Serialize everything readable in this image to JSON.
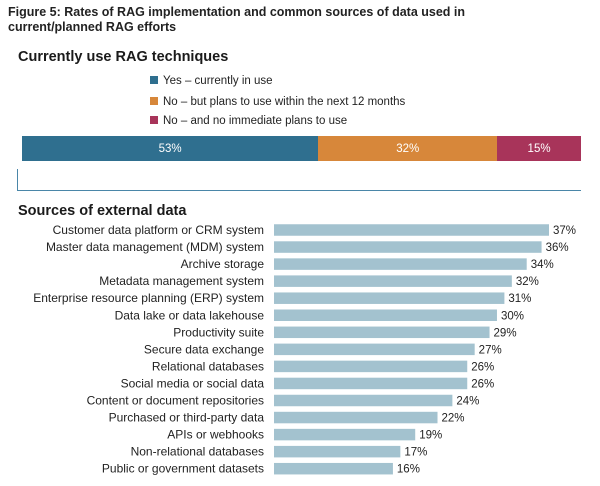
{
  "figure_title": "Figure 5: Rates of RAG implementation and common sources of data used in current/planned RAG efforts",
  "colors": {
    "yes": "#2f6f8f",
    "plans": "#d7873a",
    "no": "#a8345a",
    "bar": "#a3c2cf",
    "text": "#222222"
  },
  "chart_data": [
    {
      "type": "bar",
      "orientation": "horizontal-stacked",
      "title": "Currently use RAG techniques",
      "series": [
        {
          "name": "Yes – currently in use",
          "value": 53,
          "label": "53%",
          "color": "#2f6f8f"
        },
        {
          "name": "No – but plans to use within the next 12 months",
          "value": 32,
          "label": "32%",
          "color": "#d7873a"
        },
        {
          "name": "No – and no immediate plans to use",
          "value": 15,
          "label": "15%",
          "color": "#a8345a"
        }
      ],
      "total": 100,
      "legend": "top"
    },
    {
      "type": "bar",
      "orientation": "horizontal",
      "title": "Sources of external data",
      "categories": [
        "Customer data platform or CRM system",
        "Master data management (MDM) system",
        "Archive storage",
        "Metadata management system",
        "Enterprise resource planning (ERP) system",
        "Data lake or data lakehouse",
        "Productivity suite",
        "Secure data exchange",
        "Relational databases",
        "Social media or social data",
        "Content or document repositories",
        "Purchased or third-party data",
        "APIs or webhooks",
        "Non-relational databases",
        "Public or government datasets"
      ],
      "values": [
        37,
        36,
        34,
        32,
        31,
        30,
        29,
        27,
        26,
        26,
        24,
        22,
        19,
        17,
        16
      ],
      "labels": [
        "37%",
        "36%",
        "34%",
        "32%",
        "31%",
        "30%",
        "29%",
        "27%",
        "26%",
        "26%",
        "24%",
        "22%",
        "19%",
        "17%",
        "16%"
      ],
      "xlim": [
        0,
        37
      ],
      "unit": "%"
    }
  ]
}
